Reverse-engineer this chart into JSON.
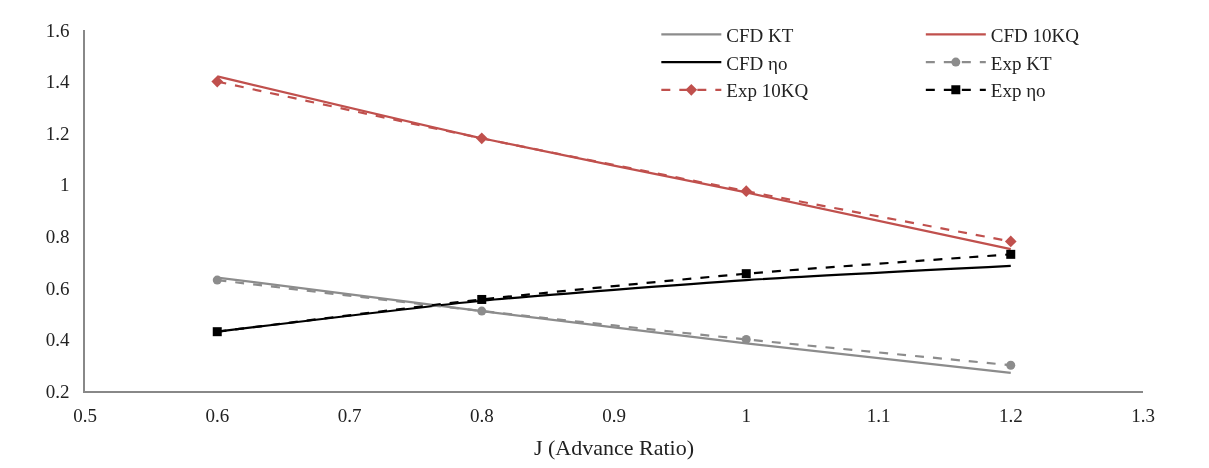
{
  "chart_data": {
    "type": "line",
    "xlabel": "J (Advance Ratio)",
    "x": [
      0.6,
      0.8,
      1.0,
      1.2
    ],
    "xlim": [
      0.5,
      1.3
    ],
    "xticks": [
      0.5,
      0.6,
      0.7,
      0.8,
      0.9,
      {
        "value": 1.0,
        "label": "1"
      },
      1.1,
      1.2,
      1.3
    ],
    "ylim": [
      0.2,
      1.6
    ],
    "yticks": [
      0.2,
      0.4,
      0.6,
      0.8,
      {
        "value": 1.0,
        "label": "1"
      },
      1.2,
      1.4,
      1.6
    ],
    "legend": "top right",
    "series": [
      {
        "name": "CFD KT",
        "color": "#8c8c8c",
        "values": [
          0.64,
          0.51,
          0.385,
          0.27
        ],
        "marker": "none",
        "line_style": "solid"
      },
      {
        "name": "CFD 10KQ",
        "color": "#c0504d",
        "values": [
          1.42,
          1.18,
          0.97,
          0.75
        ],
        "marker": "none",
        "line_style": "solid"
      },
      {
        "name": "CFD ηo",
        "color": "#000000",
        "values": [
          0.43,
          0.55,
          0.63,
          0.685
        ],
        "marker": "none",
        "line_style": "solid"
      },
      {
        "name": "Exp KT",
        "color": "#8c8c8c",
        "values": [
          0.63,
          0.51,
          0.4,
          0.3
        ],
        "marker": "circle",
        "line_style": "dashed"
      },
      {
        "name": "Exp 10KQ",
        "color": "#c0504d",
        "values": [
          1.4,
          1.18,
          0.975,
          0.78
        ],
        "marker": "diamond",
        "line_style": "dashed"
      },
      {
        "name": "Exp ηo",
        "color": "#000000",
        "values": [
          0.43,
          0.555,
          0.655,
          0.73
        ],
        "marker": "square",
        "line_style": "dashed"
      }
    ]
  }
}
